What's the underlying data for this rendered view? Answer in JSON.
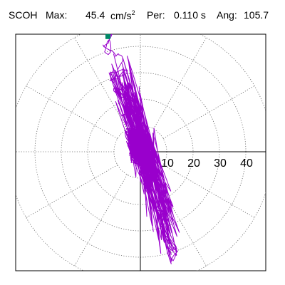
{
  "header": {
    "station": "SCOH",
    "max_label": "Max:",
    "max_value": "45.4",
    "max_unit": "cm/s",
    "max_unit_exp": "2",
    "per_label": "Per:",
    "per_value": "0.110 s",
    "ang_label": "Ang:",
    "ang_value": "105.7"
  },
  "chart_data": {
    "type": "polar-particle-motion",
    "radial_unit": "cm/s2",
    "r_max": 50,
    "rings": [
      10,
      20,
      30,
      40,
      50
    ],
    "ring_labels": [
      "10",
      "20",
      "30",
      "40"
    ],
    "spokes_deg": [
      0,
      30,
      60,
      90,
      120,
      150,
      180,
      210,
      240,
      270,
      300,
      330
    ],
    "grid_style": "dotted",
    "max_amplitude": 45.4,
    "angle_deg": 105.7,
    "period_s": 0.11,
    "trace_color": "#9900cc",
    "peak_marker_color": "#008866",
    "peak_point": {
      "x": -12.3,
      "y": 43.7
    },
    "trace_envelope": {
      "major_axis_deg": 105.7,
      "major_extent_pos": 45.4,
      "major_extent_neg": 44.0,
      "minor_extent": 7.0,
      "core": {
        "x_range": [
          -4.5,
          4.0
        ],
        "y_range": [
          -5.0,
          9.0
        ]
      }
    }
  }
}
